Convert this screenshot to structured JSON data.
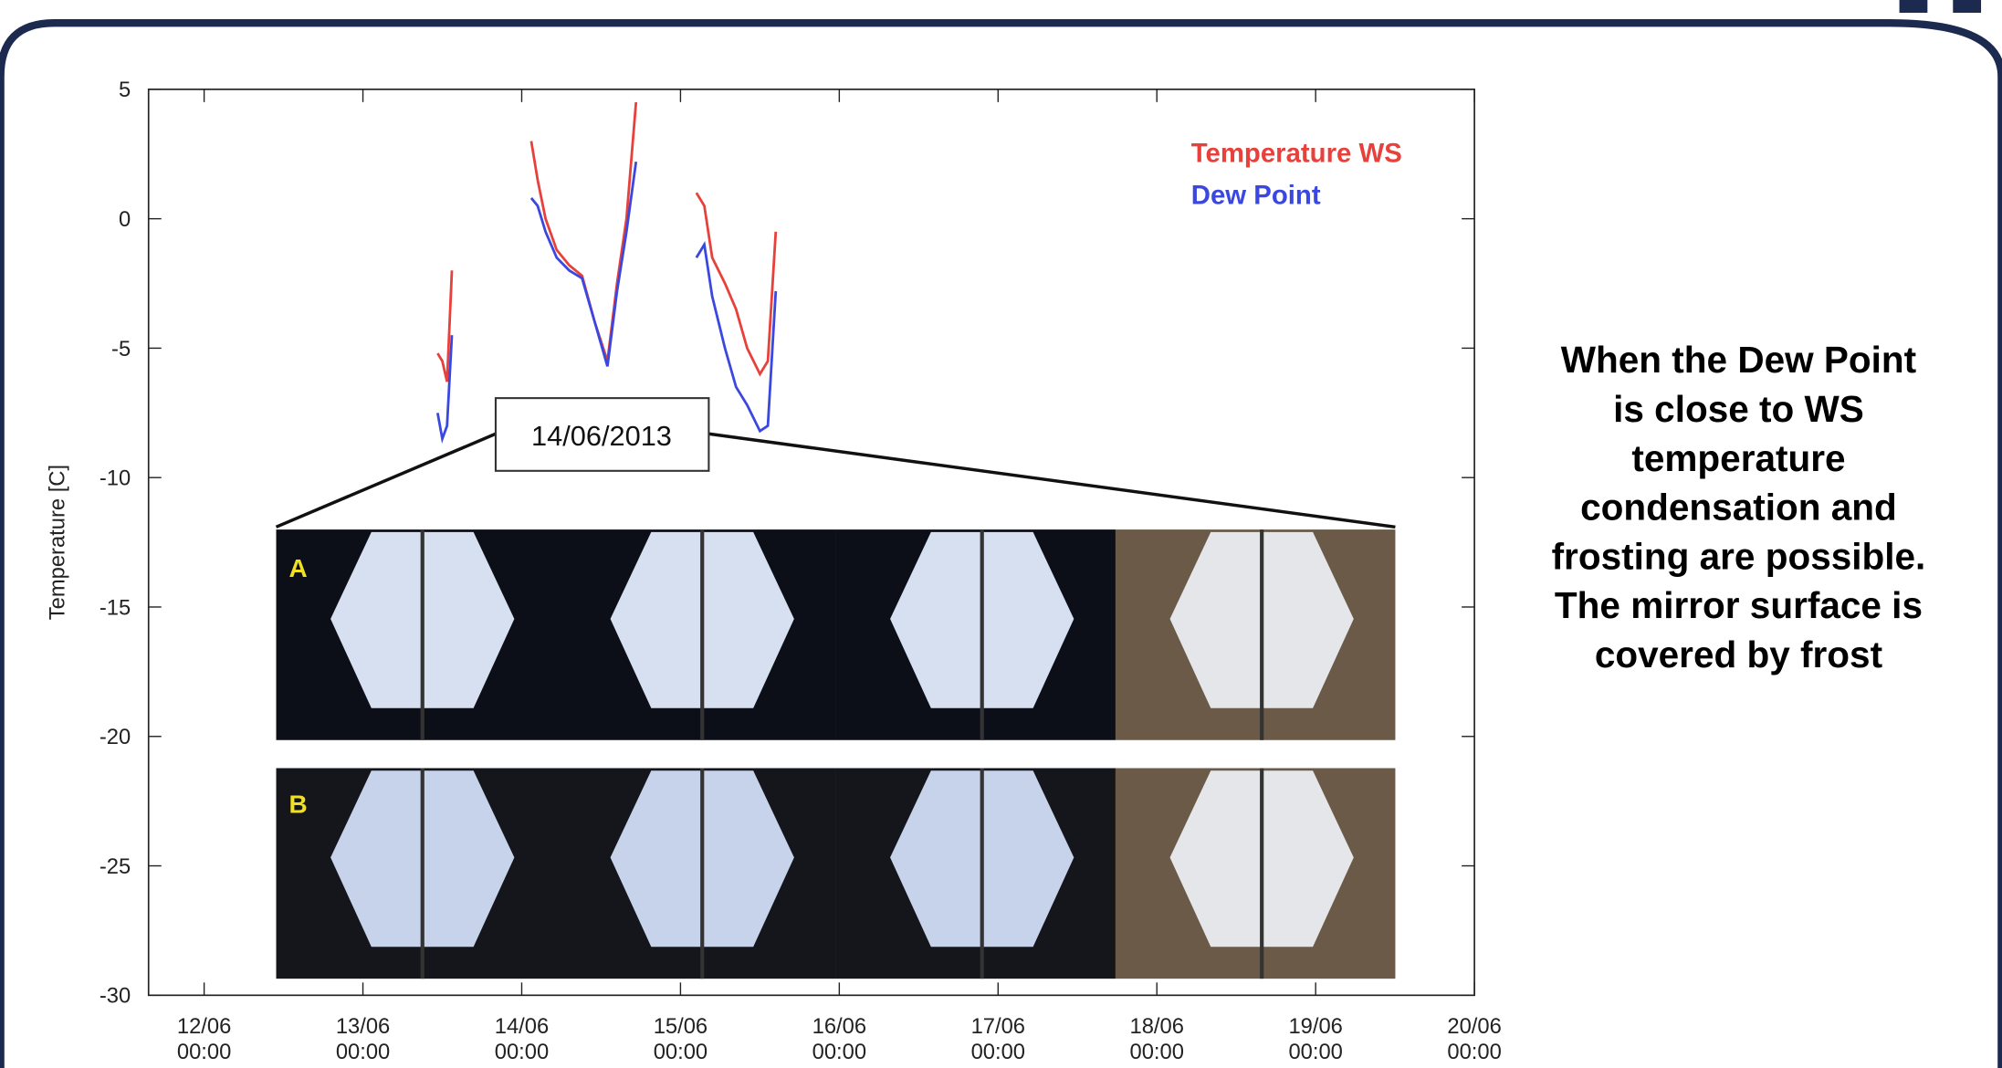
{
  "chart_data": {
    "type": "line",
    "y_label": "Temperature [C]",
    "annotation": "14/06/2013",
    "panel_labels": [
      "A",
      "B"
    ],
    "side_note": [
      "When the Dew Point",
      "is close to WS",
      "temperature",
      "condensation and",
      "frosting  are possible.",
      "The mirror surface is",
      "covered by frost"
    ],
    "legend": "upper right",
    "x": [
      13.47,
      13.5,
      13.53,
      13.56,
      13.8,
      14.06,
      14.1,
      14.15,
      14.22,
      14.3,
      14.38,
      14.46,
      14.54,
      14.6,
      14.66,
      14.72,
      14.9,
      15.1,
      15.15,
      15.2,
      15.28,
      15.35,
      15.42,
      15.5,
      15.55,
      15.6
    ],
    "series": [
      {
        "name": "Temperature WS",
        "color": "#e8403a",
        "values": [
          -5.2,
          -5.5,
          -6.3,
          -2.0,
          null,
          3.0,
          1.5,
          0.0,
          -1.2,
          -1.8,
          -2.2,
          -4.0,
          -5.5,
          -2.5,
          0.0,
          4.5,
          null,
          1.0,
          0.5,
          -1.5,
          -2.5,
          -3.5,
          -5.0,
          -6.0,
          -5.5,
          -0.5
        ]
      },
      {
        "name": "Dew Point",
        "color": "#3a48e0",
        "values": [
          -7.5,
          -8.5,
          -8.0,
          -4.5,
          null,
          0.8,
          0.5,
          -0.5,
          -1.5,
          -2.0,
          -2.3,
          -4.0,
          -5.7,
          -2.8,
          -0.5,
          2.2,
          null,
          -1.5,
          -1.0,
          -3.0,
          -5.0,
          -6.5,
          -7.2,
          -8.2,
          -8.0,
          -2.8
        ]
      }
    ],
    "xlim": [
      11.65,
      20
    ],
    "xticks": [
      {
        "value": 12,
        "label": "12/06 00:00"
      },
      {
        "value": 13,
        "label": "13/06 00:00"
      },
      {
        "value": 14,
        "label": "14/06 00:00"
      },
      {
        "value": 15,
        "label": "15/06 00:00"
      },
      {
        "value": 16,
        "label": "16/06 00:00"
      },
      {
        "value": 17,
        "label": "17/06 00:00"
      },
      {
        "value": 18,
        "label": "18/06 00:00"
      },
      {
        "value": 19,
        "label": "19/06 00:00"
      },
      {
        "value": 20,
        "label": "20/06 00:00"
      }
    ],
    "ylim": [
      -30,
      5
    ],
    "yticks": [
      -30,
      -25,
      -20,
      -15,
      -10,
      -5,
      0,
      5
    ]
  }
}
